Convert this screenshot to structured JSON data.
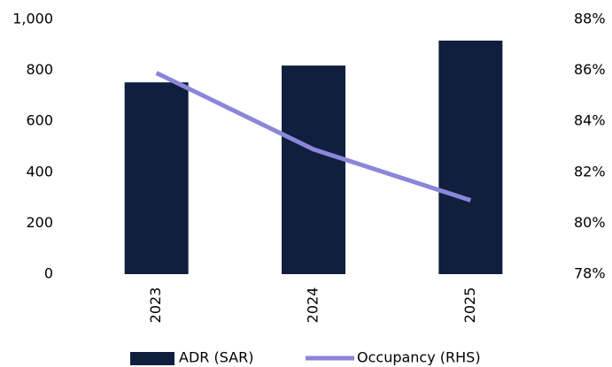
{
  "chart_data": {
    "type": "bar_line",
    "categories": [
      "2023",
      "2024",
      "2025"
    ],
    "series": [
      {
        "name": "ADR (SAR)",
        "color": "#0f1f3d",
        "values": [
          753,
          819,
          917
        ]
      },
      {
        "name": "Occupancy (RHS)",
        "color": "#8b86d9",
        "values": [
          85.9,
          82.9,
          80.9
        ],
        "axis": "y2"
      }
    ],
    "ylim": [
      0,
      1000
    ],
    "yticks": [
      0,
      200,
      400,
      600,
      800,
      {
        "value": 1000,
        "label": "1,000"
      }
    ],
    "y2lim": [
      78,
      88
    ],
    "y2ticks": [
      {
        "value": 78,
        "label": "78%"
      },
      {
        "value": 80,
        "label": "80%"
      },
      {
        "value": 82,
        "label": "82%"
      },
      {
        "value": 84,
        "label": "84%"
      },
      {
        "value": 86,
        "label": "86%"
      },
      {
        "value": 88,
        "label": "88%"
      }
    ],
    "legend": "bottom"
  }
}
